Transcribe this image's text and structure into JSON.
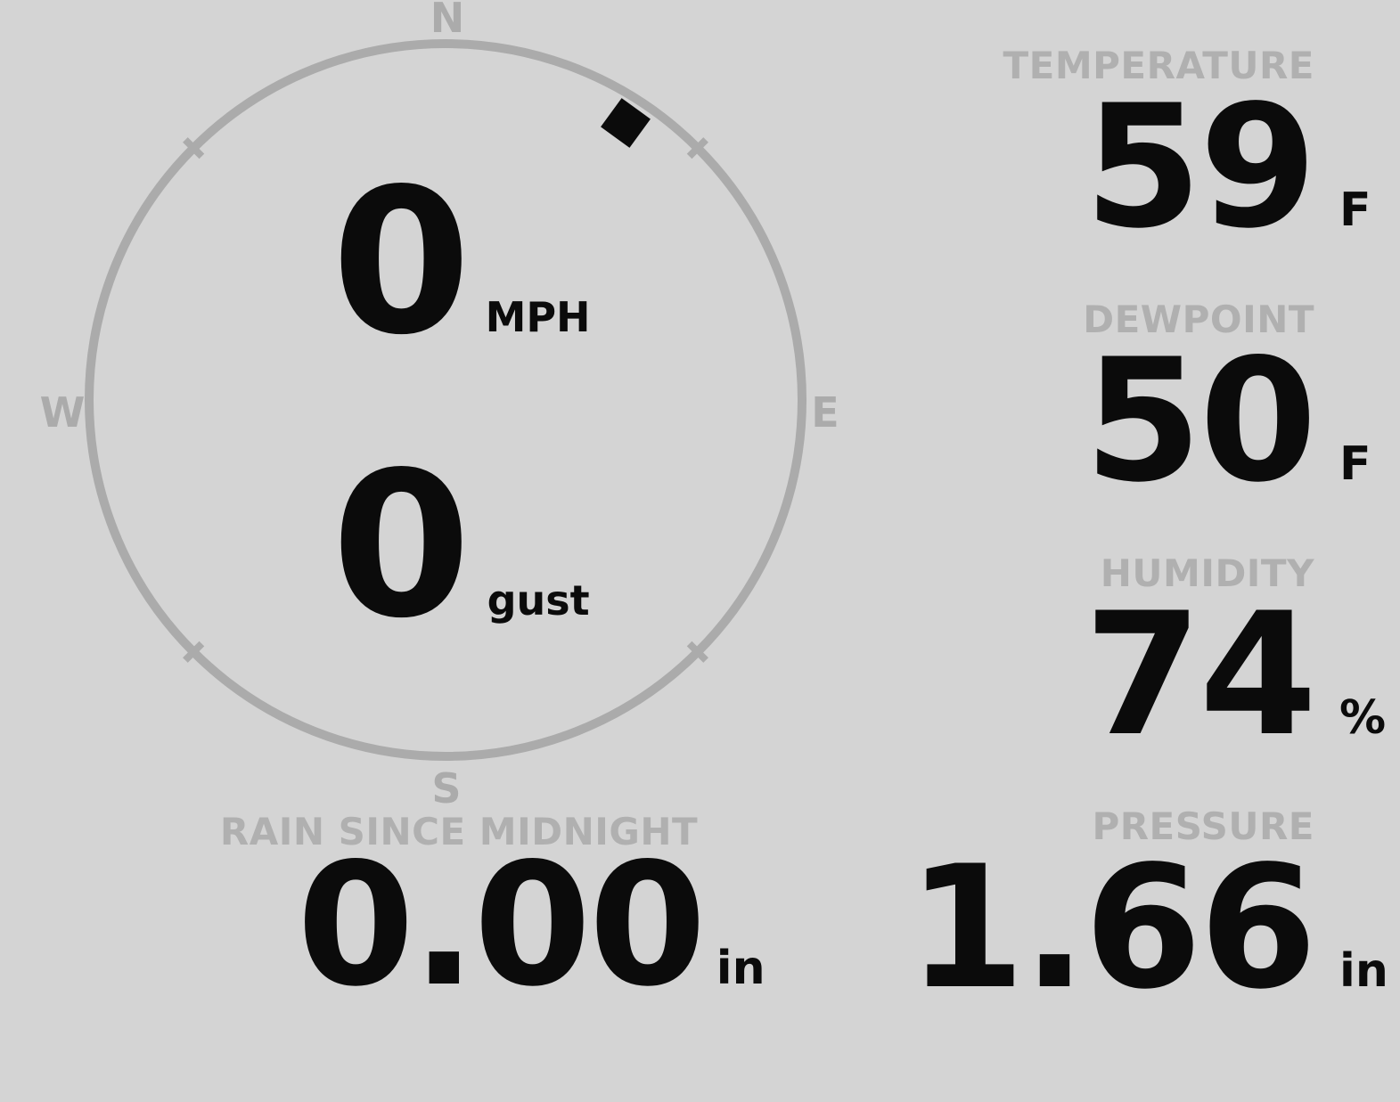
{
  "theme": {
    "background": "#d4d4d4",
    "ring_gray": "#ababab",
    "label_gray": "#b0b0b0",
    "value_black": "#0b0b0b"
  },
  "wind": {
    "direction_deg": 33,
    "compass_points": {
      "north": "N",
      "east": "E",
      "south": "S",
      "west": "W"
    },
    "speed": {
      "value": "0",
      "unit": "MPH"
    },
    "gust": {
      "value": "0",
      "unit": "gust"
    }
  },
  "metrics": {
    "temperature": {
      "label": "TEMPERATURE",
      "value": "59",
      "unit": "F"
    },
    "dewpoint": {
      "label": "DEWPOINT",
      "value": "50",
      "unit": "F"
    },
    "humidity": {
      "label": "HUMIDITY",
      "value": "74",
      "unit": "%"
    },
    "pressure": {
      "label": "PRESSURE",
      "value": "1.66",
      "unit": "in"
    },
    "rain_since_midnight": {
      "label": "RAIN SINCE MIDNIGHT",
      "value": "0.00",
      "unit": "in"
    }
  }
}
